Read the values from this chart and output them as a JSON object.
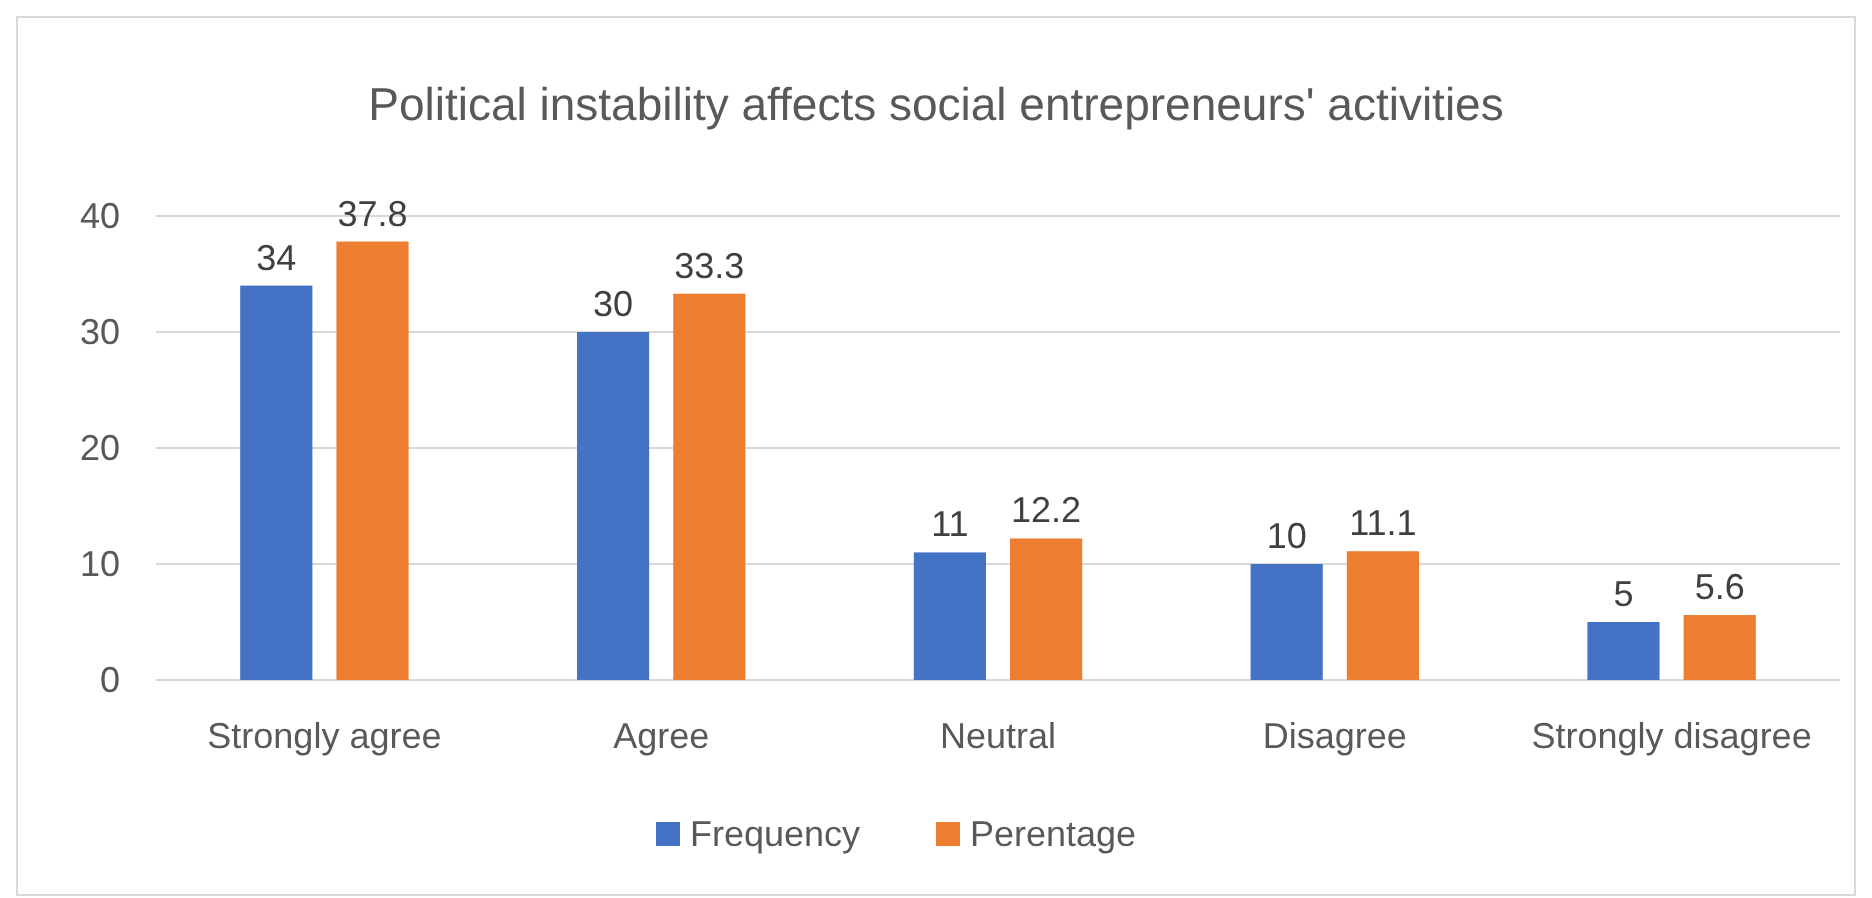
{
  "chart_data": {
    "type": "bar",
    "title": "Political instability affects social entrepreneurs' activities",
    "categories": [
      "Strongly agree",
      "Agree",
      "Neutral",
      "Disagree",
      "Strongly disagree"
    ],
    "series": [
      {
        "name": "Frequency",
        "color": "#4472c4",
        "values": [
          34,
          30,
          11,
          10,
          5
        ]
      },
      {
        "name": "Perentage",
        "color": "#ed7d31",
        "values": [
          37.8,
          33.3,
          12.2,
          11.1,
          5.6
        ]
      }
    ],
    "ylim": [
      0,
      40
    ],
    "yticks": [
      0,
      10,
      20,
      30,
      40
    ],
    "grid": "y",
    "legend": "bottom",
    "data_labels": true
  }
}
